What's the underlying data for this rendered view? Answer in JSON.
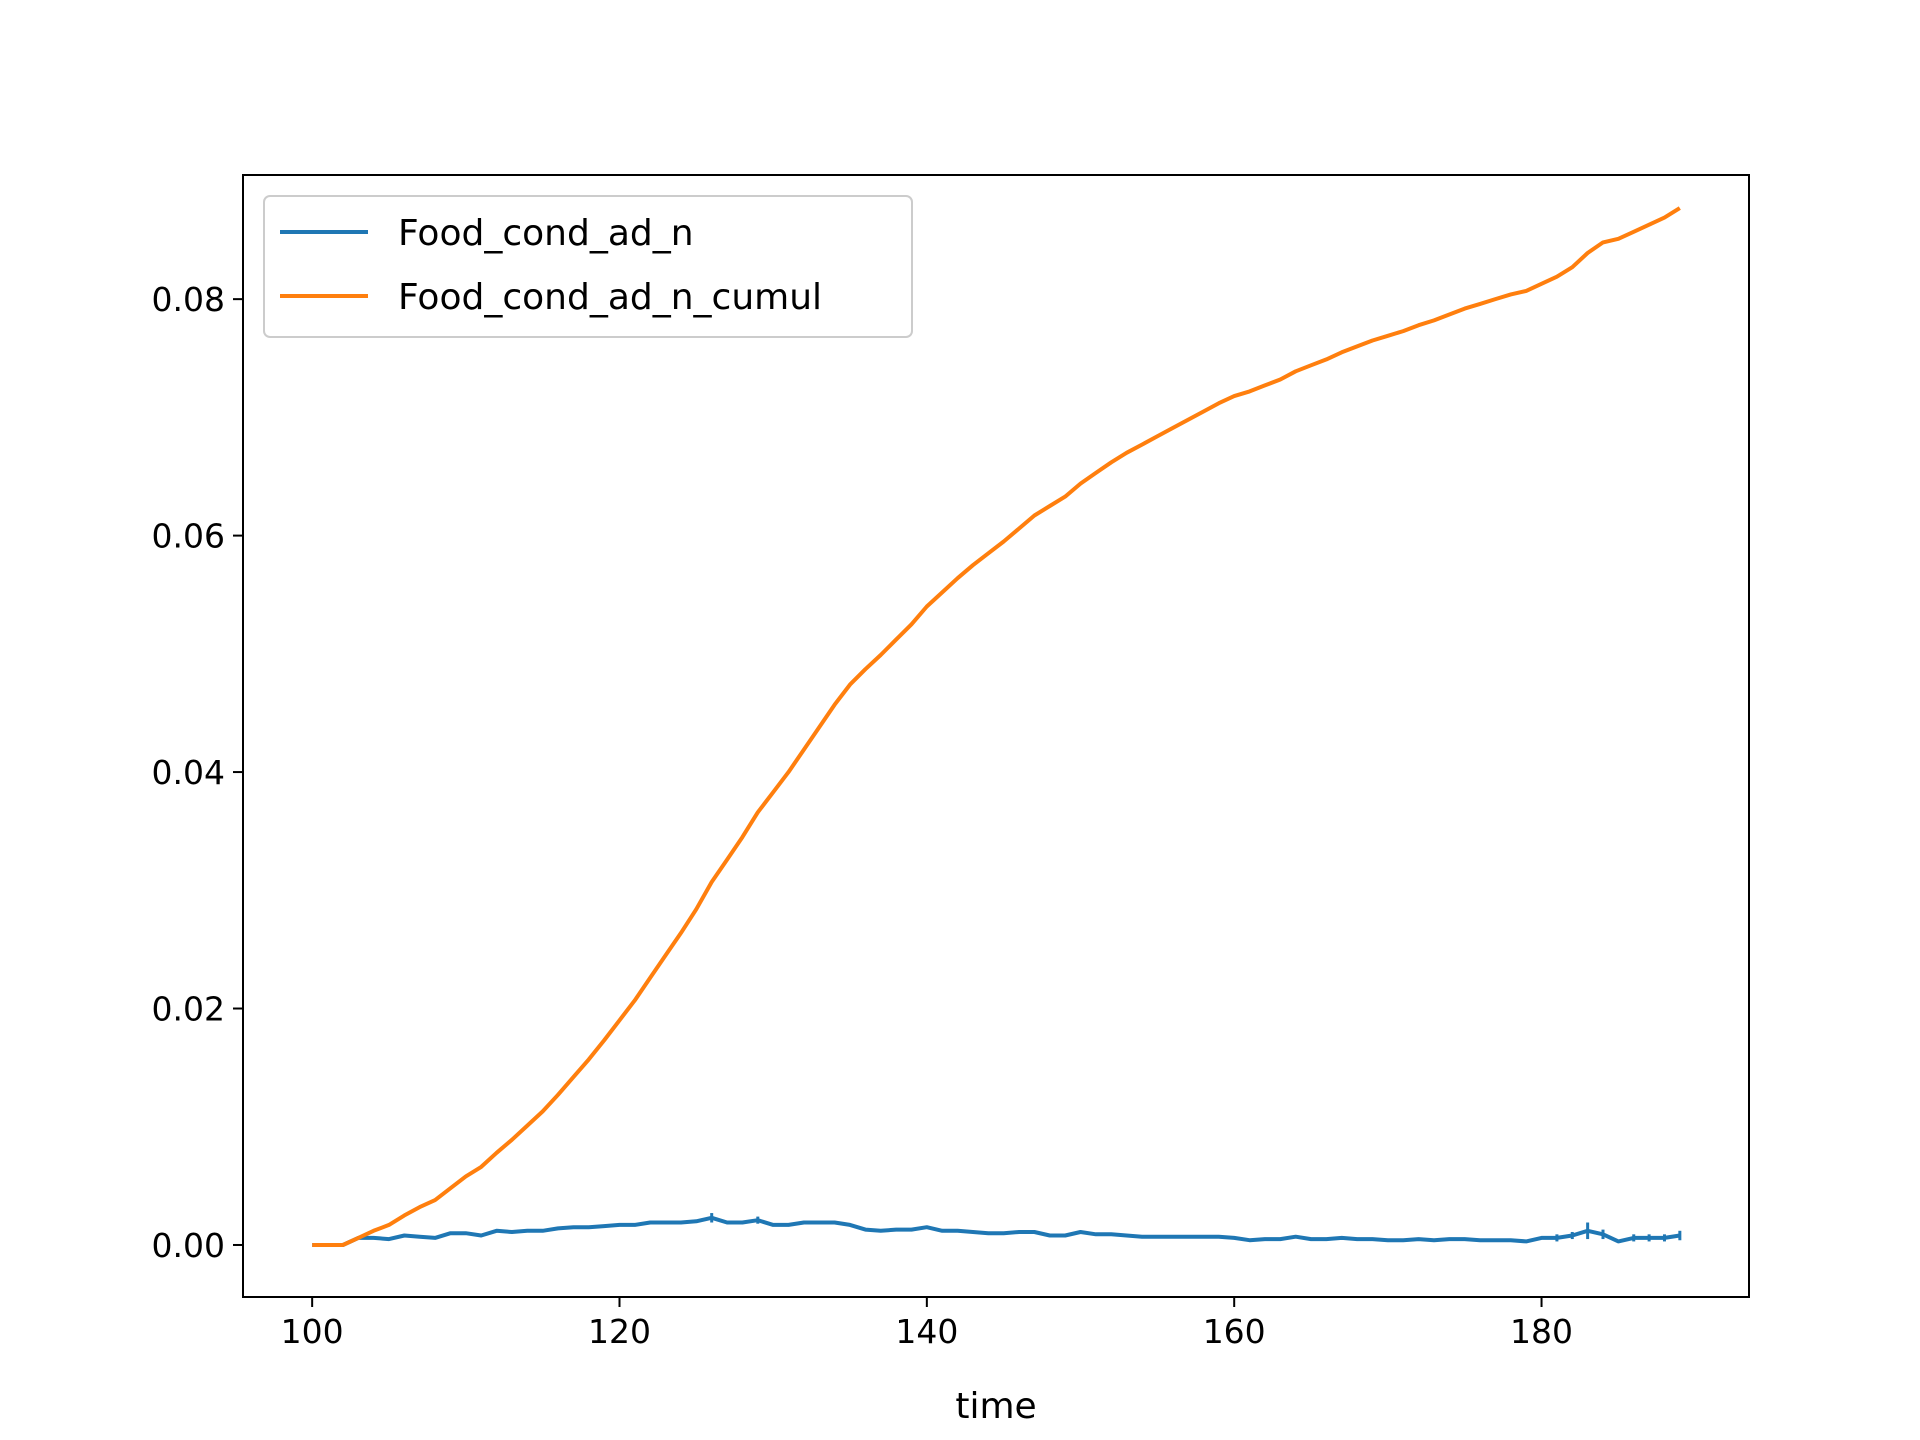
{
  "chart_data": {
    "type": "line",
    "title": "",
    "xlabel": "time",
    "ylabel": "",
    "xlim": [
      95.5,
      193.5
    ],
    "ylim": [
      -0.0044,
      0.0905
    ],
    "xticks": [
      100,
      120,
      140,
      160,
      180
    ],
    "xtick_labels": [
      "100",
      "120",
      "140",
      "160",
      "180"
    ],
    "yticks": [
      0.0,
      0.02,
      0.04,
      0.06,
      0.08
    ],
    "ytick_labels": [
      "0.00",
      "0.02",
      "0.04",
      "0.06",
      "0.08"
    ],
    "grid": false,
    "legend_position": "top-left",
    "x": [
      100,
      101,
      102,
      103,
      104,
      105,
      106,
      107,
      108,
      109,
      110,
      111,
      112,
      113,
      114,
      115,
      116,
      117,
      118,
      119,
      120,
      121,
      122,
      123,
      124,
      125,
      126,
      127,
      128,
      129,
      130,
      131,
      132,
      133,
      134,
      135,
      136,
      137,
      138,
      139,
      140,
      141,
      142,
      143,
      144,
      145,
      146,
      147,
      148,
      149,
      150,
      151,
      152,
      153,
      154,
      155,
      156,
      157,
      158,
      159,
      160,
      161,
      162,
      163,
      164,
      165,
      166,
      167,
      168,
      169,
      170,
      171,
      172,
      173,
      174,
      175,
      176,
      177,
      178,
      179,
      180,
      181,
      182,
      183,
      184,
      185,
      186,
      187,
      188,
      189
    ],
    "series": [
      {
        "name": "Food_cond_ad_n",
        "color": "#1f77b4",
        "values": [
          0.0,
          0.0,
          0.0,
          0.0006,
          0.0006,
          0.0005,
          0.0008,
          0.0007,
          0.0006,
          0.001,
          0.001,
          0.0008,
          0.0012,
          0.0011,
          0.0012,
          0.0012,
          0.0014,
          0.0015,
          0.0015,
          0.0016,
          0.0017,
          0.0017,
          0.0019,
          0.0019,
          0.0019,
          0.002,
          0.0023,
          0.0019,
          0.0019,
          0.0021,
          0.0017,
          0.0017,
          0.0019,
          0.0019,
          0.0019,
          0.0017,
          0.0013,
          0.0012,
          0.0013,
          0.0013,
          0.0015,
          0.0012,
          0.0012,
          0.0011,
          0.001,
          0.001,
          0.0011,
          0.0011,
          0.0008,
          0.0008,
          0.0011,
          0.0009,
          0.0009,
          0.0008,
          0.0007,
          0.0007,
          0.0007,
          0.0007,
          0.0007,
          0.0007,
          0.0006,
          0.0004,
          0.0005,
          0.0005,
          0.0007,
          0.0005,
          0.0005,
          0.0006,
          0.0005,
          0.0005,
          0.0004,
          0.0004,
          0.0005,
          0.0004,
          0.0005,
          0.0005,
          0.0004,
          0.0004,
          0.0004,
          0.0003,
          0.0006,
          0.0006,
          0.0008,
          0.0012,
          0.0009,
          0.0003,
          0.0006,
          0.0006,
          0.0006,
          0.0008
        ],
        "errors": [
          0,
          0,
          0,
          0,
          0,
          0,
          0,
          0,
          0,
          0,
          0,
          0,
          0,
          0,
          0,
          0,
          0,
          0,
          0,
          0,
          0,
          0,
          0,
          0,
          0,
          0,
          0.0004,
          0,
          0,
          0.0003,
          0,
          0,
          0,
          0,
          0,
          0,
          0,
          0,
          0,
          0,
          0,
          0,
          0,
          0,
          0,
          0,
          0,
          0,
          0,
          0,
          0,
          0,
          0,
          0,
          0,
          0,
          0,
          0,
          0,
          0,
          0,
          0,
          0,
          0,
          0,
          0,
          0,
          0,
          0,
          0,
          0,
          0,
          0,
          0,
          0,
          0,
          0,
          0,
          0,
          0,
          0,
          0.0003,
          0.0003,
          0.0007,
          0.0004,
          0,
          0.0003,
          0.0003,
          0.0003,
          0.0004
        ]
      },
      {
        "name": "Food_cond_ad_n_cumul",
        "color": "#ff7f0e",
        "values": [
          0.0,
          0.0,
          0.0,
          0.0006,
          0.0012,
          0.0017,
          0.0025,
          0.0032,
          0.0038,
          0.0048,
          0.0058,
          0.0066,
          0.0078,
          0.0089,
          0.0101,
          0.0113,
          0.0127,
          0.0142,
          0.0157,
          0.0173,
          0.019,
          0.0207,
          0.0226,
          0.0245,
          0.0264,
          0.0284,
          0.0307,
          0.0326,
          0.0345,
          0.0366,
          0.0383,
          0.04,
          0.0419,
          0.0438,
          0.0457,
          0.0474,
          0.0487,
          0.0499,
          0.0512,
          0.0525,
          0.054,
          0.0552,
          0.0564,
          0.0575,
          0.0585,
          0.0595,
          0.0606,
          0.0617,
          0.0625,
          0.0633,
          0.0644,
          0.0653,
          0.0662,
          0.067,
          0.0677,
          0.0684,
          0.0691,
          0.0698,
          0.0705,
          0.0712,
          0.0718,
          0.0722,
          0.0727,
          0.0732,
          0.0739,
          0.0744,
          0.0749,
          0.0755,
          0.076,
          0.0765,
          0.0769,
          0.0773,
          0.0778,
          0.0782,
          0.0787,
          0.0792,
          0.0796,
          0.08,
          0.0804,
          0.0807,
          0.0813,
          0.0819,
          0.0827,
          0.0839,
          0.0848,
          0.0851,
          0.0857,
          0.0863,
          0.0869,
          0.0877
        ]
      }
    ]
  }
}
